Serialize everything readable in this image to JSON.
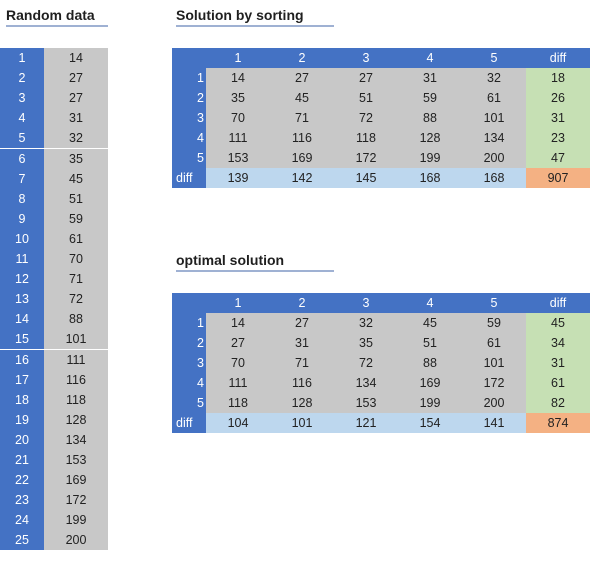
{
  "headings": {
    "random": "Random data",
    "sorting": "Solution by sorting",
    "optimal": "optimal solution"
  },
  "random": {
    "index": [
      "1",
      "2",
      "3",
      "4",
      "5",
      "6",
      "7",
      "8",
      "9",
      "10",
      "11",
      "12",
      "13",
      "14",
      "15",
      "16",
      "17",
      "18",
      "19",
      "20",
      "21",
      "22",
      "23",
      "24",
      "25"
    ],
    "values": [
      "14",
      "27",
      "27",
      "31",
      "32",
      "35",
      "45",
      "51",
      "59",
      "61",
      "70",
      "71",
      "72",
      "88",
      "101",
      "111",
      "116",
      "118",
      "128",
      "134",
      "153",
      "169",
      "172",
      "199",
      "200"
    ]
  },
  "sorting": {
    "col_headers": [
      "1",
      "2",
      "3",
      "4",
      "5",
      "diff"
    ],
    "row_labels": [
      "1",
      "2",
      "3",
      "4",
      "5"
    ],
    "rows": [
      [
        "14",
        "27",
        "27",
        "31",
        "32",
        "18"
      ],
      [
        "35",
        "45",
        "51",
        "59",
        "61",
        "26"
      ],
      [
        "70",
        "71",
        "72",
        "88",
        "101",
        "31"
      ],
      [
        "111",
        "116",
        "118",
        "128",
        "134",
        "23"
      ],
      [
        "153",
        "169",
        "172",
        "199",
        "200",
        "47"
      ]
    ],
    "diff_label": "diff",
    "diff_row": [
      "139",
      "142",
      "145",
      "168",
      "168",
      "907"
    ]
  },
  "optimal": {
    "col_headers": [
      "1",
      "2",
      "3",
      "4",
      "5",
      "diff"
    ],
    "row_labels": [
      "1",
      "2",
      "3",
      "4",
      "5"
    ],
    "rows": [
      [
        "14",
        "27",
        "32",
        "45",
        "59",
        "45"
      ],
      [
        "27",
        "31",
        "35",
        "51",
        "61",
        "34"
      ],
      [
        "70",
        "71",
        "72",
        "88",
        "101",
        "31"
      ],
      [
        "111",
        "116",
        "134",
        "169",
        "172",
        "61"
      ],
      [
        "118",
        "128",
        "153",
        "199",
        "200",
        "82"
      ]
    ],
    "diff_label": "diff",
    "diff_row": [
      "104",
      "101",
      "121",
      "154",
      "141",
      "874"
    ]
  },
  "colors": {
    "header_blue": "#4472c4",
    "cell_gray": "#c8c8c8",
    "diff_row_blue": "#bdd7ee",
    "diff_col_green": "#c6e0b4",
    "total_orange": "#f4b183"
  }
}
